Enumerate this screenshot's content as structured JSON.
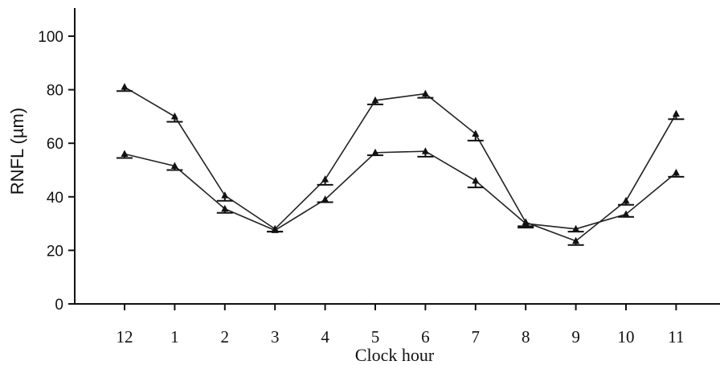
{
  "chart_data": {
    "type": "line",
    "xlabel": "Clock hour",
    "ylabel": "RNFL (µm)",
    "ylim": [
      0,
      110
    ],
    "yticks": [
      0,
      20,
      40,
      60,
      80,
      100
    ],
    "categories": [
      "12",
      "1",
      "2",
      "3",
      "4",
      "5",
      "6",
      "7",
      "8",
      "9",
      "10",
      "11"
    ],
    "grid": false,
    "series": [
      {
        "values": [
          81,
          70,
          40.5,
          28,
          46.5,
          76,
          78.5,
          63.5,
          30.5,
          23.5,
          38.5,
          71
        ],
        "error_low": [
          79.5,
          68,
          38.5,
          27,
          44.5,
          74.5,
          77,
          61,
          29,
          22,
          37,
          69
        ]
      },
      {
        "values": [
          56,
          51.5,
          35.5,
          27.5,
          39,
          56.5,
          57,
          46,
          30,
          28,
          33.5,
          49
        ],
        "error_low": [
          54.5,
          50,
          34,
          27,
          38,
          55.5,
          55,
          43.5,
          28.5,
          27,
          32.5,
          47.5
        ]
      }
    ]
  }
}
